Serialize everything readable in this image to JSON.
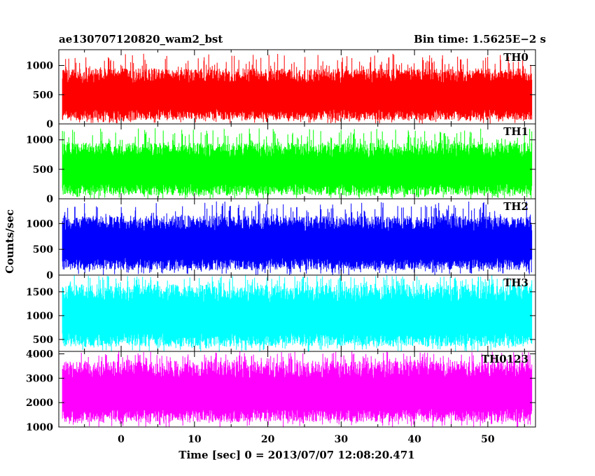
{
  "header": {
    "title": "ae130707120820_wam2_bst",
    "bin_time": "Bin time: 1.5625E−2 s"
  },
  "axes": {
    "ylabel": "Counts/sec",
    "xlabel": "Time [sec] 0 = 2013/07/07 12:08:20.471"
  },
  "chart_data": [
    {
      "type": "line",
      "name": "TH0",
      "color": "#ff0000",
      "x_range": [
        -8.5,
        56.5
      ],
      "data_x_range": [
        -8.0,
        56.0
      ],
      "ylim": [
        0,
        1270
      ],
      "yticks": [
        0,
        500,
        1000
      ],
      "band_low": 60,
      "band_high": 950,
      "spike_max": 1200,
      "dip_min": 0
    },
    {
      "type": "line",
      "name": "TH1",
      "color": "#00ff00",
      "x_range": [
        -8.5,
        56.5
      ],
      "data_x_range": [
        -8.0,
        56.0
      ],
      "ylim": [
        0,
        1270
      ],
      "yticks": [
        0,
        500,
        1000
      ],
      "band_low": 60,
      "band_high": 950,
      "spike_max": 1200,
      "dip_min": 0
    },
    {
      "type": "line",
      "name": "TH2",
      "color": "#0000ff",
      "x_range": [
        -8.5,
        56.5
      ],
      "data_x_range": [
        -8.0,
        56.0
      ],
      "ylim": [
        0,
        1480
      ],
      "yticks": [
        0,
        500,
        1000
      ],
      "band_low": 100,
      "band_high": 1150,
      "spike_max": 1430,
      "dip_min": 0
    },
    {
      "type": "line",
      "name": "TH3",
      "color": "#00ffff",
      "x_range": [
        -8.5,
        56.5
      ],
      "data_x_range": [
        -8.0,
        56.0
      ],
      "ylim": [
        250,
        1850
      ],
      "yticks": [
        500,
        1000,
        1500
      ],
      "band_low": 350,
      "band_high": 1650,
      "spike_max": 1850,
      "dip_min": 250
    },
    {
      "type": "line",
      "name": "TH0123",
      "color": "#ff00ff",
      "x_range": [
        -8.5,
        56.5
      ],
      "data_x_range": [
        -8.0,
        56.0
      ],
      "ylim": [
        1000,
        4100
      ],
      "yticks": [
        1000,
        2000,
        3000,
        4000
      ],
      "band_low": 1200,
      "band_high": 3700,
      "spike_max": 4100,
      "dip_min": 1000,
      "xticks": [
        0,
        10,
        20,
        30,
        40,
        50
      ],
      "xlabel": "Time [sec] 0 = 2013/07/07 12:08:20.471"
    }
  ]
}
